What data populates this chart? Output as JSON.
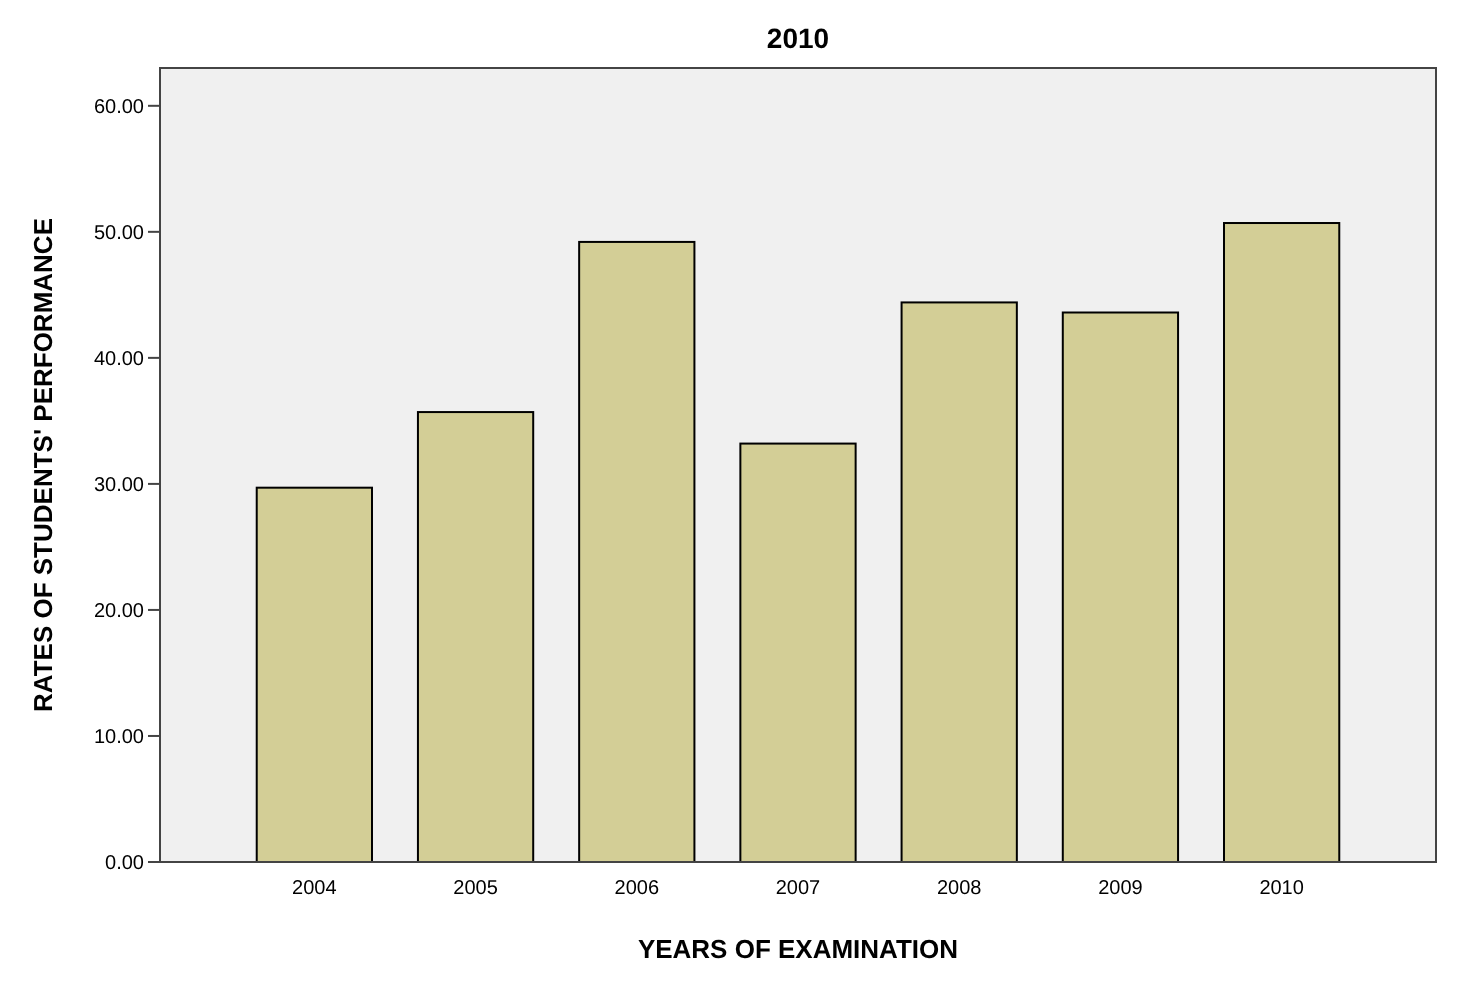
{
  "chart_data": {
    "type": "bar",
    "title": "2010",
    "xlabel": "YEARS OF EXAMINATION",
    "ylabel": "RATES OF STUDENTS' PERFORMANCE",
    "categories": [
      "2004",
      "2005",
      "2006",
      "2007",
      "2008",
      "2009",
      "2010"
    ],
    "values": [
      29.7,
      35.7,
      49.2,
      33.2,
      44.4,
      43.6,
      50.7
    ],
    "color": "#d3ce96",
    "ylim": [
      0,
      63
    ],
    "yticks": [
      {
        "value": 0,
        "label": "0.00"
      },
      {
        "value": 10,
        "label": "10.00"
      },
      {
        "value": 20,
        "label": "20.00"
      },
      {
        "value": 30,
        "label": "30.00"
      },
      {
        "value": 40,
        "label": "40.00"
      },
      {
        "value": 50,
        "label": "50.00"
      },
      {
        "value": 60,
        "label": "60.00"
      }
    ],
    "grid": false
  }
}
